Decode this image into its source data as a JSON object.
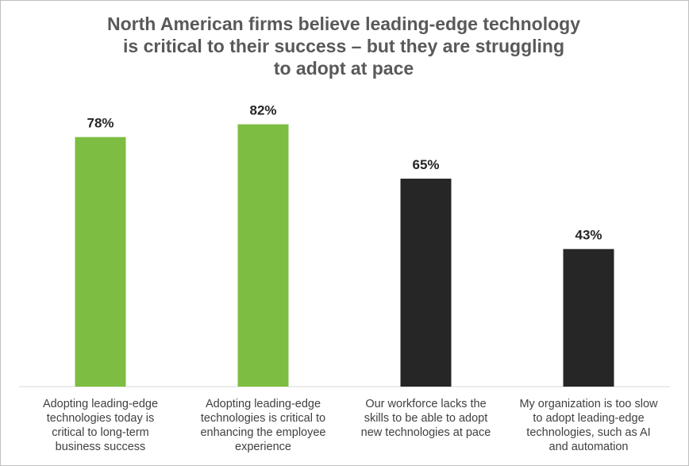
{
  "chart_data": {
    "type": "bar",
    "title_lines": [
      "North American firms believe leading-edge technology",
      "is critical to their success – but they are struggling",
      "to adopt at pace"
    ],
    "categories": [
      "Adopting leading-edge technologies today is critical to long-term business success",
      "Adopting leading-edge technologies is critical to enhancing the employee experience",
      "Our workforce lacks the skills to be able to adopt new technologies at pace",
      "My organization is too slow to adopt leading-edge technologies, such as AI and automation"
    ],
    "category_lines": [
      [
        "Adopting leading-edge",
        "technologies today is",
        "critical to long-term",
        "business success"
      ],
      [
        "Adopting leading-edge",
        "technologies is critical to",
        "enhancing the employee",
        "experience"
      ],
      [
        "Our workforce lacks the",
        "skills to be able to adopt",
        "new technologies at pace"
      ],
      [
        "My organization is too slow",
        "to adopt leading-edge",
        "technologies, such as AI",
        "and automation"
      ]
    ],
    "values": [
      78,
      82,
      65,
      43
    ],
    "value_labels": [
      "78%",
      "82%",
      "65%",
      "43%"
    ],
    "bar_colors": [
      "#7dbd42",
      "#7dbd42",
      "#262626",
      "#262626"
    ],
    "ylim": [
      0,
      100
    ],
    "grid": false,
    "legend": "none"
  }
}
